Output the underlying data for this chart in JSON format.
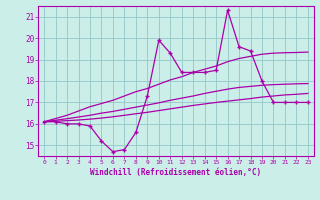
{
  "xlabel": "Windchill (Refroidissement éolien,°C)",
  "bg_color": "#cceee8",
  "line_color": "#aa00aa",
  "grid_color": "#99cccc",
  "xlim_min": -0.5,
  "xlim_max": 23.5,
  "ylim_min": 14.5,
  "ylim_max": 21.5,
  "yticks": [
    15,
    16,
    17,
    18,
    19,
    20,
    21
  ],
  "xticks": [
    0,
    1,
    2,
    3,
    4,
    5,
    6,
    7,
    8,
    9,
    10,
    11,
    12,
    13,
    14,
    15,
    16,
    17,
    18,
    19,
    20,
    21,
    22,
    23
  ],
  "x": [
    0,
    1,
    2,
    3,
    4,
    5,
    6,
    7,
    8,
    9,
    10,
    11,
    12,
    13,
    14,
    15,
    16,
    17,
    18,
    19,
    20,
    21,
    22,
    23
  ],
  "y_actual": [
    16.1,
    16.1,
    16.0,
    16.0,
    15.9,
    15.2,
    14.7,
    14.8,
    15.6,
    17.3,
    19.9,
    19.3,
    18.4,
    18.4,
    18.4,
    18.5,
    21.3,
    19.6,
    19.4,
    18.0,
    17.0,
    17.0,
    17.0,
    17.0
  ],
  "y_top": [
    16.1,
    16.25,
    16.4,
    16.6,
    16.8,
    16.95,
    17.1,
    17.3,
    17.5,
    17.65,
    17.85,
    18.05,
    18.2,
    18.4,
    18.55,
    18.7,
    18.9,
    19.05,
    19.15,
    19.25,
    19.3,
    19.32,
    19.33,
    19.35
  ],
  "y_mid": [
    16.1,
    16.17,
    16.24,
    16.32,
    16.4,
    16.5,
    16.58,
    16.68,
    16.78,
    16.88,
    16.98,
    17.1,
    17.2,
    17.3,
    17.42,
    17.52,
    17.62,
    17.7,
    17.75,
    17.8,
    17.83,
    17.85,
    17.87,
    17.88
  ],
  "y_bot": [
    16.1,
    16.12,
    16.15,
    16.18,
    16.22,
    16.27,
    16.33,
    16.4,
    16.47,
    16.54,
    16.62,
    16.7,
    16.78,
    16.86,
    16.93,
    17.0,
    17.06,
    17.12,
    17.18,
    17.25,
    17.3,
    17.35,
    17.38,
    17.42
  ]
}
